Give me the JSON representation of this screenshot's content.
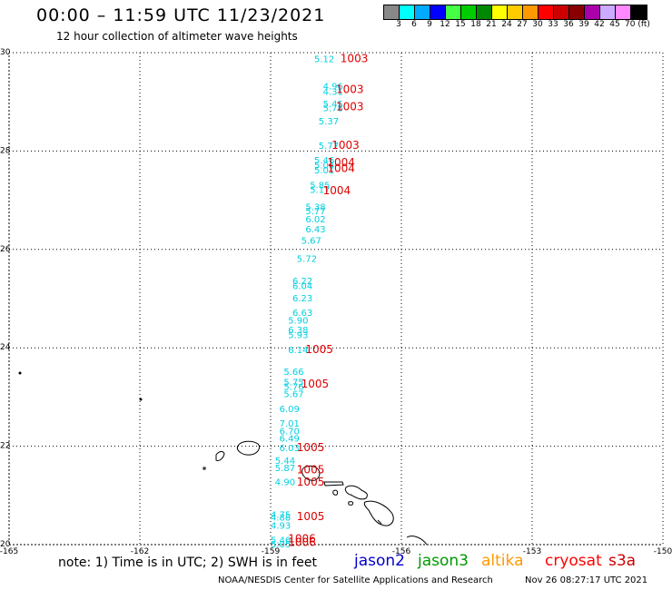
{
  "title": "00:00 – 11:59 UTC 11/23/2021",
  "subtitle": "12 hour collection of altimeter wave heights",
  "colorbar": {
    "labels": [
      "3",
      "6",
      "9",
      "12",
      "15",
      "18",
      "21",
      "24",
      "27",
      "30",
      "33",
      "36",
      "39",
      "42",
      "45",
      "70 (ft)"
    ],
    "colors": [
      "#888888",
      "#00ffff",
      "#00aaff",
      "#0000ff",
      "#44ff44",
      "#00cc00",
      "#008800",
      "#ffff00",
      "#ffcc00",
      "#ff9900",
      "#ff0000",
      "#cc0000",
      "#880000",
      "#aa00aa",
      "#ccaaff",
      "#ff88ff",
      "#000000"
    ]
  },
  "axes": {
    "lat_ticks": [
      "30",
      "28",
      "26",
      "24",
      "22",
      "20"
    ],
    "lon_ticks": [
      "-165",
      "-162",
      "-159",
      "-156",
      "-153",
      "-150"
    ]
  },
  "swh_labels": [
    {
      "text": "5.12",
      "lon": -158.0,
      "lat": 29.88
    },
    {
      "text": "4.96",
      "lon": -157.8,
      "lat": 29.33
    },
    {
      "text": "4.31",
      "lon": -157.8,
      "lat": 29.22
    },
    {
      "text": "5.45",
      "lon": -157.8,
      "lat": 28.97
    },
    {
      "text": "5.78",
      "lon": -157.8,
      "lat": 28.88
    },
    {
      "text": "5.37",
      "lon": -157.9,
      "lat": 28.62
    },
    {
      "text": "5.77",
      "lon": -157.9,
      "lat": 28.12
    },
    {
      "text": "5.46",
      "lon": -158.0,
      "lat": 27.82
    },
    {
      "text": "5.04",
      "lon": -158.0,
      "lat": 27.72
    },
    {
      "text": "5.01",
      "lon": -158.0,
      "lat": 27.62
    },
    {
      "text": "5.85",
      "lon": -158.1,
      "lat": 27.32
    },
    {
      "text": "5.17",
      "lon": -158.1,
      "lat": 27.22
    },
    {
      "text": "5.38",
      "lon": -158.2,
      "lat": 26.87
    },
    {
      "text": "5.77",
      "lon": -158.2,
      "lat": 26.79
    },
    {
      "text": "6.02",
      "lon": -158.2,
      "lat": 26.62
    },
    {
      "text": "6.43",
      "lon": -158.2,
      "lat": 26.42
    },
    {
      "text": "5.67",
      "lon": -158.3,
      "lat": 26.19
    },
    {
      "text": "5.72",
      "lon": -158.4,
      "lat": 25.82
    },
    {
      "text": "6.22",
      "lon": -158.5,
      "lat": 25.37
    },
    {
      "text": "6.04",
      "lon": -158.5,
      "lat": 25.27
    },
    {
      "text": "6.23",
      "lon": -158.5,
      "lat": 25.02
    },
    {
      "text": "6.63",
      "lon": -158.5,
      "lat": 24.72
    },
    {
      "text": "5.90",
      "lon": -158.6,
      "lat": 24.57
    },
    {
      "text": "6.38",
      "lon": -158.6,
      "lat": 24.37
    },
    {
      "text": "5.93",
      "lon": -158.6,
      "lat": 24.27
    },
    {
      "text": "6.14",
      "lon": -158.6,
      "lat": 23.97
    },
    {
      "text": "5.66",
      "lon": -158.7,
      "lat": 23.52
    },
    {
      "text": "5.75",
      "lon": -158.7,
      "lat": 23.31
    },
    {
      "text": "5.76",
      "lon": -158.7,
      "lat": 23.22
    },
    {
      "text": "5.67",
      "lon": -158.7,
      "lat": 23.07
    },
    {
      "text": "6.09",
      "lon": -158.8,
      "lat": 22.77
    },
    {
      "text": "7.01",
      "lon": -158.8,
      "lat": 22.47
    },
    {
      "text": "6.70",
      "lon": -158.8,
      "lat": 22.32
    },
    {
      "text": "6.49",
      "lon": -158.8,
      "lat": 22.17
    },
    {
      "text": "6.03",
      "lon": -158.8,
      "lat": 21.97
    },
    {
      "text": "5.44",
      "lon": -158.9,
      "lat": 21.72
    },
    {
      "text": "5.87",
      "lon": -158.9,
      "lat": 21.57
    },
    {
      "text": "4.90",
      "lon": -158.9,
      "lat": 21.28
    },
    {
      "text": "4.75",
      "lon": -159.0,
      "lat": 20.62
    },
    {
      "text": "4.88",
      "lon": -159.0,
      "lat": 20.56
    },
    {
      "text": "4.93",
      "lon": -159.0,
      "lat": 20.4
    },
    {
      "text": "5.46",
      "lon": -159.0,
      "lat": 20.1
    },
    {
      "text": "5.05",
      "lon": -159.0,
      "lat": 20.02
    }
  ],
  "pressure_labels": [
    {
      "text": "1003",
      "lon": -157.4,
      "lat": 29.88
    },
    {
      "text": "1003",
      "lon": -157.5,
      "lat": 29.25
    },
    {
      "text": "1003",
      "lon": -157.5,
      "lat": 28.9
    },
    {
      "text": "1003",
      "lon": -157.6,
      "lat": 28.12
    },
    {
      "text": "1004",
      "lon": -157.7,
      "lat": 27.77
    },
    {
      "text": "1004",
      "lon": -157.7,
      "lat": 27.65
    },
    {
      "text": "1004",
      "lon": -157.8,
      "lat": 27.2
    },
    {
      "text": "1005",
      "lon": -158.2,
      "lat": 23.97
    },
    {
      "text": "1005",
      "lon": -158.3,
      "lat": 23.27
    },
    {
      "text": "1005",
      "lon": -158.4,
      "lat": 21.97
    },
    {
      "text": "1005",
      "lon": -158.4,
      "lat": 21.52
    },
    {
      "text": "1005",
      "lon": -158.4,
      "lat": 21.27
    },
    {
      "text": "1005",
      "lon": -158.4,
      "lat": 20.57
    },
    {
      "text": "1006",
      "lon": -158.6,
      "lat": 20.12
    },
    {
      "text": "1006",
      "lon": -158.6,
      "lat": 20.05
    }
  ],
  "note": "note:  1) Time is in UTC;  2) SWH is in feet",
  "satellites": [
    {
      "name": "jason2",
      "color": "#0000cc"
    },
    {
      "name": "jason3",
      "color": "#009900"
    },
    {
      "name": "altika",
      "color": "#ff9900"
    },
    {
      "name": "cryosat",
      "color": "#ff0000"
    },
    {
      "name": "s3a",
      "color": "#cc0000"
    }
  ],
  "credit": "NOAA/NESDIS Center for Satellite Applications and Research",
  "generated": "Nov 26 08:27:17 UTC 2021",
  "colors": {
    "swh": "#00d0e0",
    "pressure": "#dd0000",
    "grid": "#000000"
  }
}
